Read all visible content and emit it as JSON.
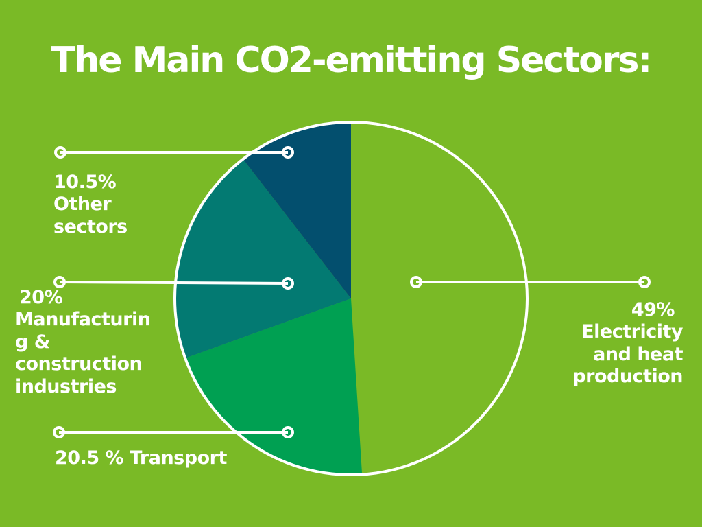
{
  "chart_data": {
    "type": "pie",
    "title": "The Main CO2-emitting Sectors:",
    "slices": [
      {
        "value": 49,
        "label_lines": [
          "49%",
          "Electricity",
          "and heat",
          "production"
        ],
        "color": "#7aba26"
      },
      {
        "value": 20.5,
        "label_lines": [
          "20.5 % Transport"
        ],
        "color": "#00a052"
      },
      {
        "value": 20,
        "label_lines": [
          "20%",
          "Manufacturin",
          "g &",
          "construction",
          "industries"
        ],
        "color": "#037a72"
      },
      {
        "value": 10.5,
        "label_lines": [
          "10.5%",
          "Other",
          "sectors"
        ],
        "color": "#034f6e"
      }
    ]
  }
}
